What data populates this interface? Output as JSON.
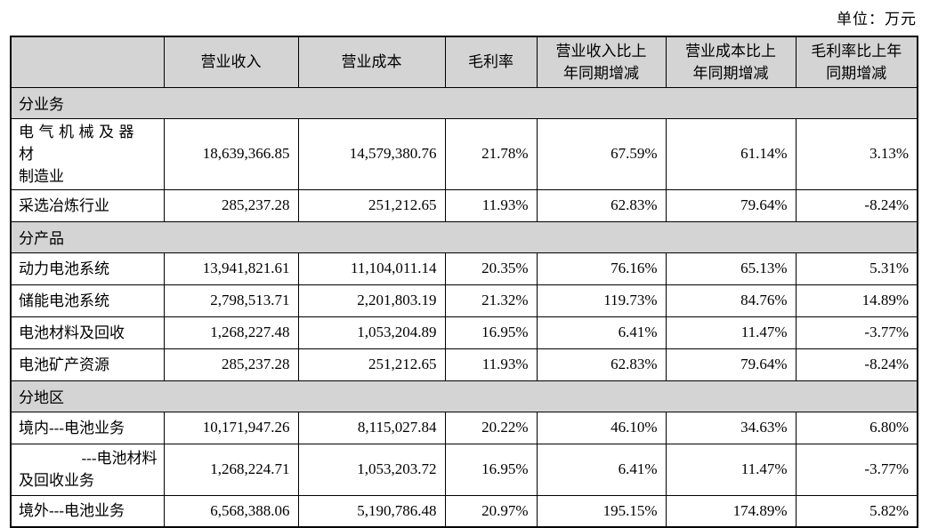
{
  "unit_label": "单位：万元",
  "colors": {
    "page_bg": "#ffffff",
    "header_bg": "#d4d4d4",
    "section_bg": "#d4d4d4",
    "border": "#000000",
    "text": "#000000"
  },
  "table": {
    "columns": [
      "",
      "营业收入",
      "营业成本",
      "毛利率",
      "营业收入比上\n年同期增减",
      "营业成本比上\n年同期增减",
      "毛利率比上年\n同期增减"
    ],
    "sections": [
      {
        "title": "分业务",
        "rows": [
          {
            "label": "电气机械及器材\n制造业",
            "values": [
              "18,639,366.85",
              "14,579,380.76",
              "21.78%",
              "67.59%",
              "61.14%",
              "3.13%"
            ]
          },
          {
            "label": "采选冶炼行业",
            "values": [
              "285,237.28",
              "251,212.65",
              "11.93%",
              "62.83%",
              "79.64%",
              "-8.24%"
            ]
          }
        ]
      },
      {
        "title": "分产品",
        "rows": [
          {
            "label": "动力电池系统",
            "values": [
              "13,941,821.61",
              "11,104,011.14",
              "20.35%",
              "76.16%",
              "65.13%",
              "5.31%"
            ]
          },
          {
            "label": "储能电池系统",
            "values": [
              "2,798,513.71",
              "2,201,803.19",
              "21.32%",
              "119.73%",
              "84.76%",
              "14.89%"
            ]
          },
          {
            "label": "电池材料及回收",
            "values": [
              "1,268,227.48",
              "1,053,204.89",
              "16.95%",
              "6.41%",
              "11.47%",
              "-3.77%"
            ]
          },
          {
            "label": "电池矿产资源",
            "values": [
              "285,237.28",
              "251,212.65",
              "11.93%",
              "62.83%",
              "79.64%",
              "-8.24%"
            ]
          }
        ]
      },
      {
        "title": "分地区",
        "rows": [
          {
            "label": "境内---电池业务",
            "values": [
              "10,171,947.26",
              "8,115,027.84",
              "20.22%",
              "46.10%",
              "34.63%",
              "6.80%"
            ]
          },
          {
            "label": "---电池材料\n及回收业务",
            "values": [
              "1,268,224.71",
              "1,053,203.72",
              "16.95%",
              "6.41%",
              "11.47%",
              "-3.77%"
            ]
          },
          {
            "label": "境外---电池业务",
            "values": [
              "6,568,388.06",
              "5,190,786.48",
              "20.97%",
              "195.15%",
              "174.89%",
              "5.82%"
            ]
          }
        ]
      }
    ]
  }
}
